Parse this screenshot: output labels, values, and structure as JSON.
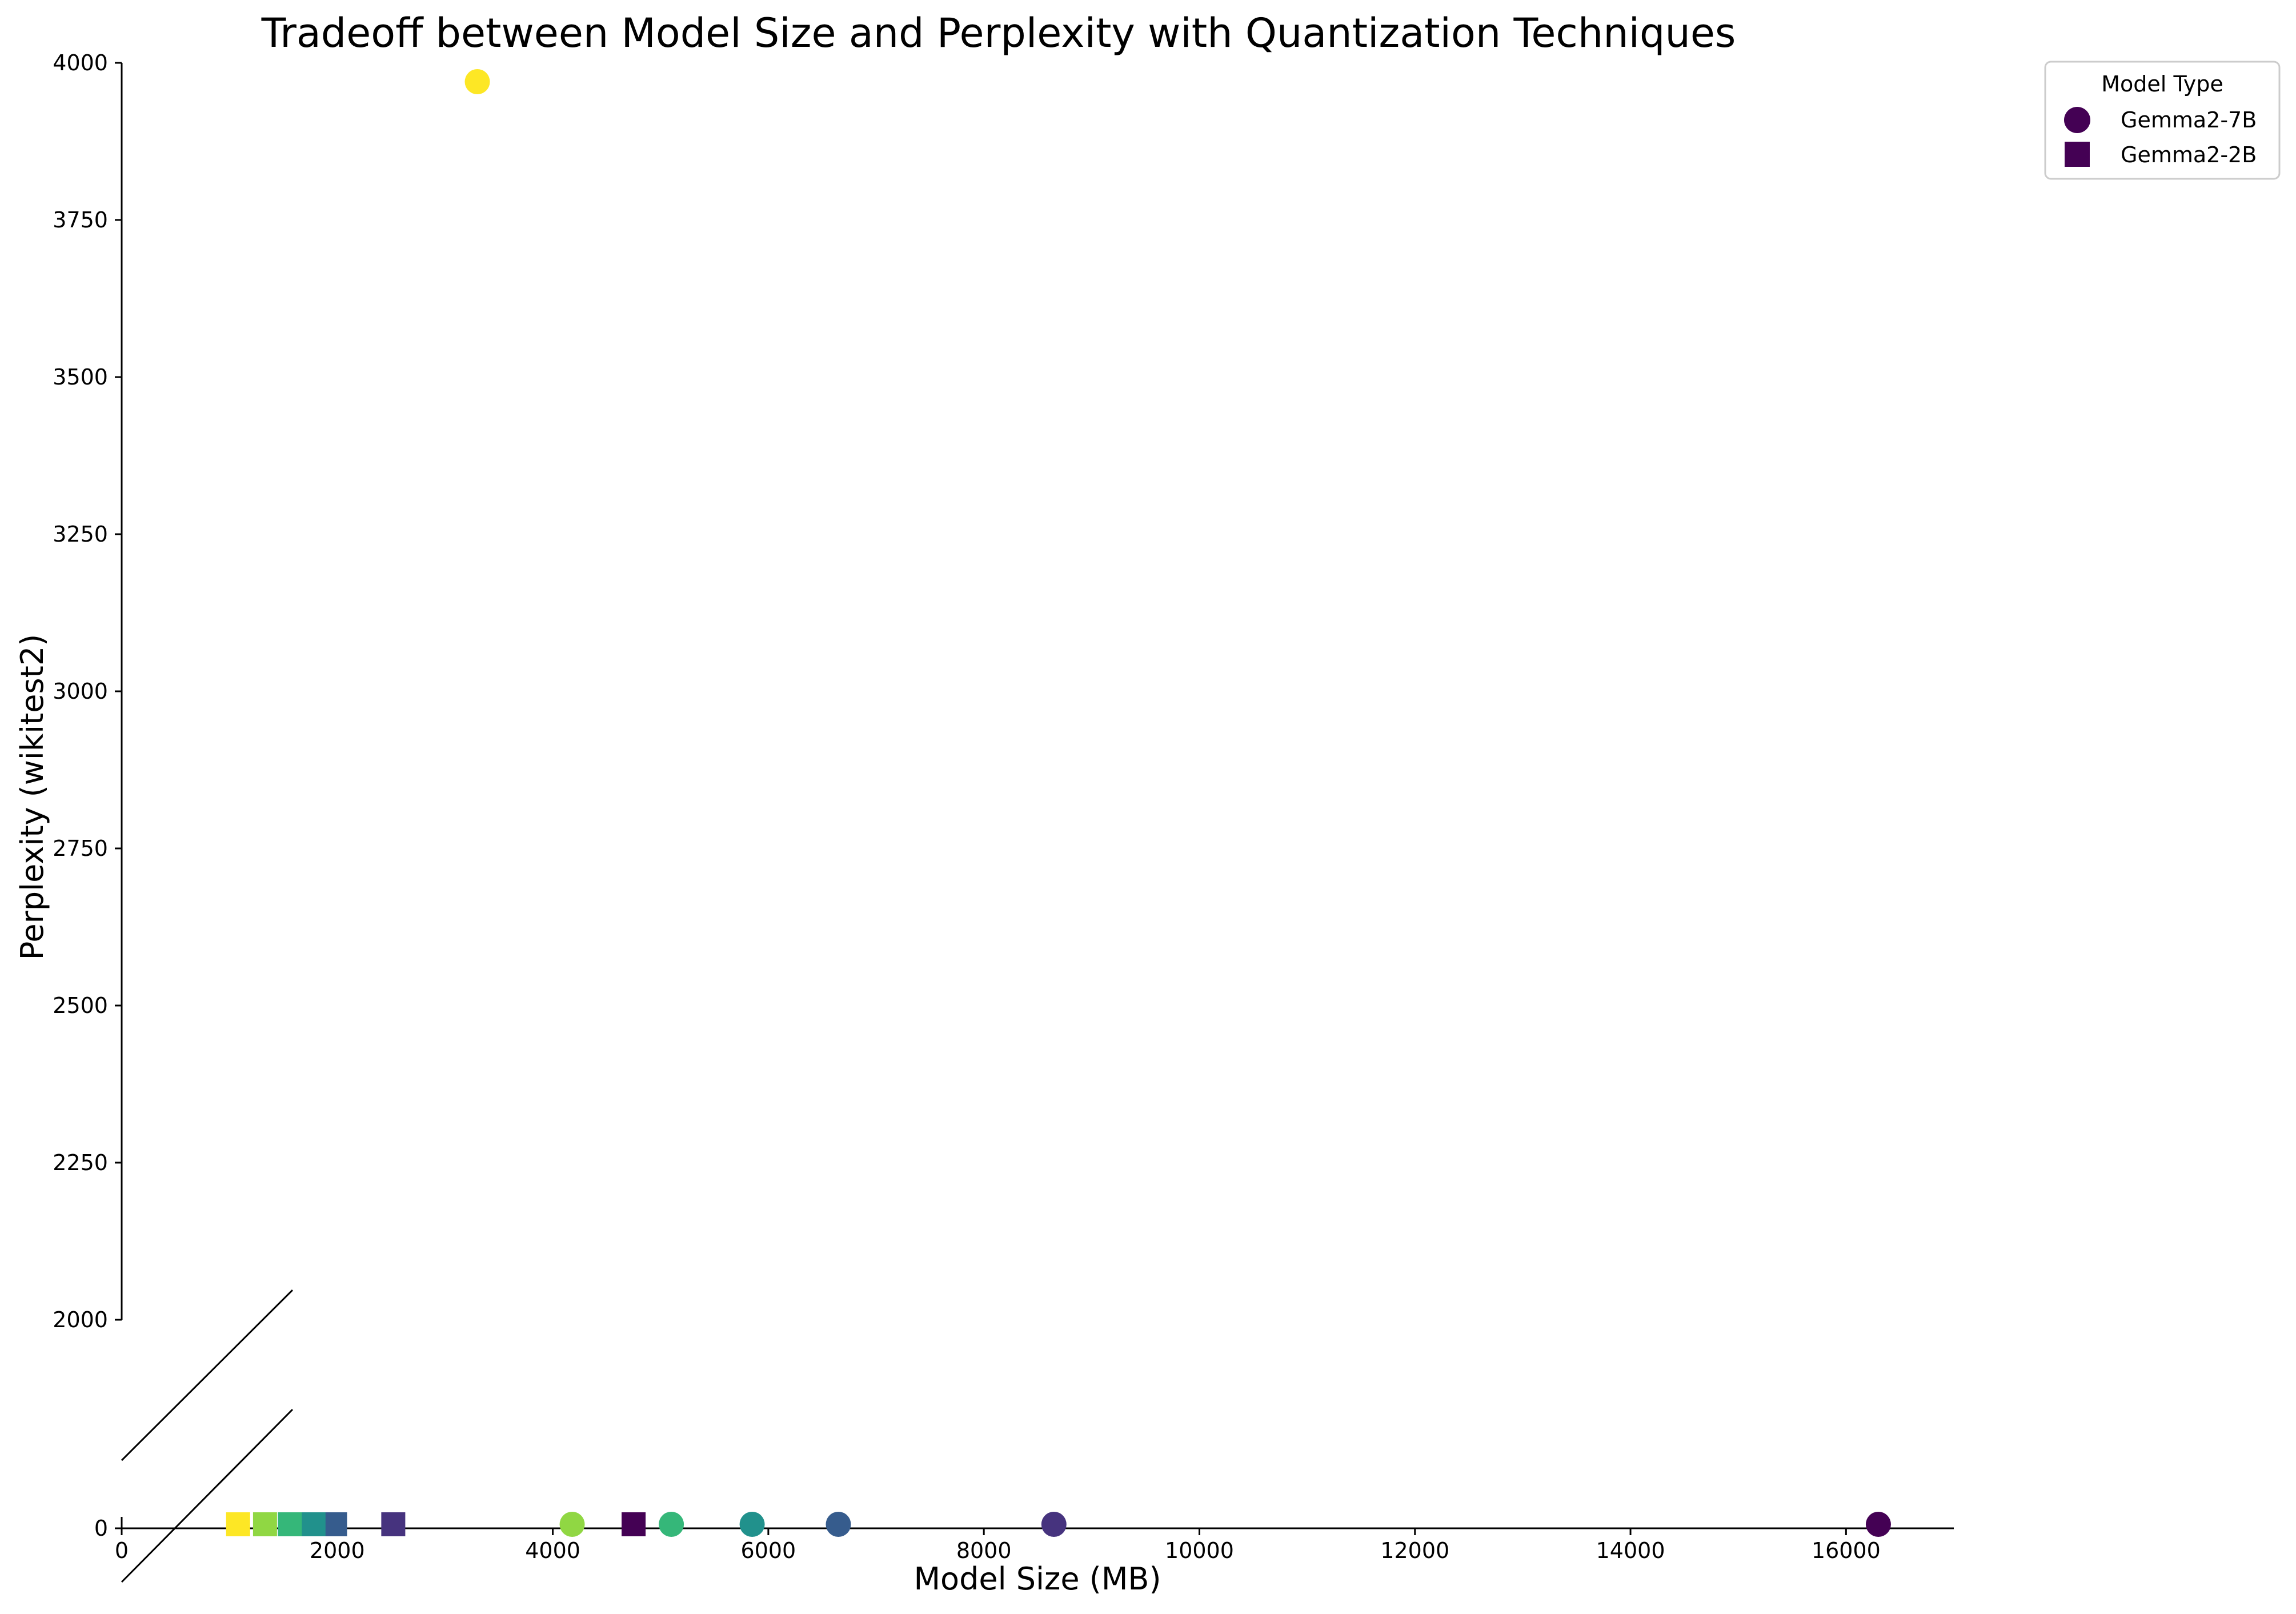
{
  "chart_data": {
    "type": "scatter",
    "title": "Tradeoff between Model Size and Perplexity with Quantization Techniques",
    "xlabel": "Model Size (MB)",
    "ylabel": "Perplexity (wikitest2)",
    "xlim": [
      0,
      17000
    ],
    "ylim_upper": [
      2000,
      4000
    ],
    "ylim_lower": [
      0,
      50
    ],
    "broken_y_axis": true,
    "grid": false,
    "legend": {
      "title": "Model Type",
      "placement": "outside-top-right",
      "entries": [
        {
          "label": "Gemma2-7B",
          "marker": "circle",
          "color": "#440154"
        },
        {
          "label": "Gemma2-2B",
          "marker": "square",
          "color": "#440154"
        }
      ]
    },
    "x_ticks": [
      "0",
      "2000",
      "4000",
      "6000",
      "8000",
      "10000",
      "12000",
      "14000",
      "16000"
    ],
    "y_ticks_upper": [
      "2000",
      "2250",
      "2500",
      "2750",
      "3000",
      "3250",
      "3500",
      "3750",
      "4000"
    ],
    "y_ticks_lower": [
      "0"
    ],
    "series": [
      {
        "name": "Gemma2-7B",
        "marker": "circle",
        "points": [
          {
            "x": 16300,
            "y": 7,
            "color": "#440154"
          },
          {
            "x": 8650,
            "y": 7,
            "color": "#46337e"
          },
          {
            "x": 6650,
            "y": 7,
            "color": "#365c8d"
          },
          {
            "x": 5850,
            "y": 7,
            "color": "#21918c"
          },
          {
            "x": 5100,
            "y": 7,
            "color": "#35b779"
          },
          {
            "x": 4180,
            "y": 7,
            "color": "#90d743"
          },
          {
            "x": 3300,
            "y": 3970,
            "color": "#fde725"
          }
        ]
      },
      {
        "name": "Gemma2-2B",
        "marker": "square",
        "points": [
          {
            "x": 4750,
            "y": 7,
            "color": "#440154"
          },
          {
            "x": 2520,
            "y": 7,
            "color": "#46337e"
          },
          {
            "x": 1980,
            "y": 7,
            "color": "#365c8d"
          },
          {
            "x": 1780,
            "y": 7,
            "color": "#21918c"
          },
          {
            "x": 1560,
            "y": 7,
            "color": "#35b779"
          },
          {
            "x": 1330,
            "y": 7,
            "color": "#90d743"
          },
          {
            "x": 1080,
            "y": 7,
            "color": "#fde725"
          }
        ]
      }
    ]
  }
}
